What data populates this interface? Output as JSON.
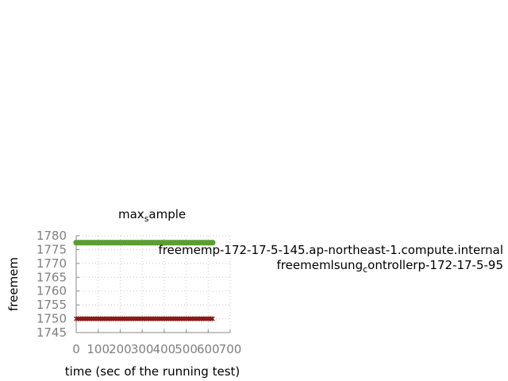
{
  "chart_data": {
    "type": "line",
    "title": "max_sample",
    "title_main": "max",
    "title_sub": "s",
    "title_rest": "ample",
    "xlabel": "time (sec of the running test)",
    "ylabel": "freemem",
    "xlim": [
      0,
      700
    ],
    "ylim": [
      1745,
      1780
    ],
    "xticks": [
      0,
      100,
      200,
      300,
      400,
      500,
      600,
      700
    ],
    "yticks": [
      1745,
      1750,
      1755,
      1760,
      1765,
      1770,
      1775,
      1780
    ],
    "grid": true,
    "legend_position": "right",
    "series": [
      {
        "name": "freememp-172-17-5-145.ap-northeast-1.compute.internal",
        "color": "#5a9e32",
        "marker": "circle",
        "x_start": 0,
        "x_end": 620,
        "x_step": 10,
        "value": 1777.5
      },
      {
        "name": "freememlsungcontrollerp-172-17-5-95",
        "name_parts": [
          "freememl",
          "sung",
          "c",
          "ontrollerp",
          "-172-17-5-95"
        ],
        "color": "#8b1a1a",
        "marker": "cross",
        "x_start": 0,
        "x_end": 620,
        "x_step": 10,
        "value": 1750
      }
    ]
  }
}
